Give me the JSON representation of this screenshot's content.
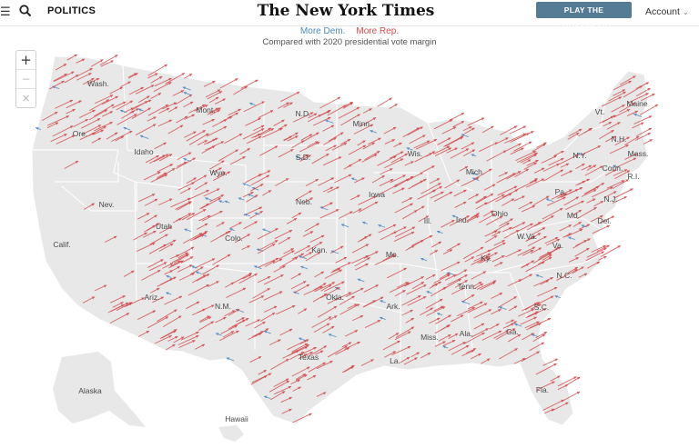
{
  "header": {
    "menu_icon": "hamburger-icon",
    "search_icon": "search-icon",
    "section": "POLITICS",
    "logo": "The New York Times",
    "cta": "PLAY THE CROSSWORD",
    "account": "Account",
    "account_icon": "chevron-down-icon"
  },
  "legend": {
    "dem": "More Dem.",
    "rep": "More Rep."
  },
  "subtitle": "Compared with 2020 presidential vote margin",
  "zoom": {
    "in": "+",
    "out": "−",
    "reset": "×"
  },
  "colors": {
    "dem": "#4b8ac2",
    "rep": "#d24c4f",
    "land": "#e8e8e8",
    "border": "#ffffff",
    "cta": "#567b95"
  },
  "states": [
    {
      "name": "Wash."
    },
    {
      "name": "Ore."
    },
    {
      "name": "Calif."
    },
    {
      "name": "Idaho"
    },
    {
      "name": "Nev."
    },
    {
      "name": "Utah"
    },
    {
      "name": "Ariz."
    },
    {
      "name": "Mont."
    },
    {
      "name": "Wyo."
    },
    {
      "name": "Colo."
    },
    {
      "name": "N.M."
    },
    {
      "name": "N.D."
    },
    {
      "name": "S.D."
    },
    {
      "name": "Neb."
    },
    {
      "name": "Kan."
    },
    {
      "name": "Okla."
    },
    {
      "name": "Texas"
    },
    {
      "name": "Minn."
    },
    {
      "name": "Iowa"
    },
    {
      "name": "Mo."
    },
    {
      "name": "Ark."
    },
    {
      "name": "La."
    },
    {
      "name": "Wis."
    },
    {
      "name": "Ill."
    },
    {
      "name": "Mich."
    },
    {
      "name": "Ind."
    },
    {
      "name": "Ohio"
    },
    {
      "name": "Ky."
    },
    {
      "name": "Tenn."
    },
    {
      "name": "Miss."
    },
    {
      "name": "Ala."
    },
    {
      "name": "Ga."
    },
    {
      "name": "Fla."
    },
    {
      "name": "S.C."
    },
    {
      "name": "N.C."
    },
    {
      "name": "Va."
    },
    {
      "name": "W.Va."
    },
    {
      "name": "Pa."
    },
    {
      "name": "N.Y."
    },
    {
      "name": "Vt."
    },
    {
      "name": "Maine"
    },
    {
      "name": "N.H."
    },
    {
      "name": "Mass."
    },
    {
      "name": "Conn."
    },
    {
      "name": "R.I."
    },
    {
      "name": "N.J."
    },
    {
      "name": "Del."
    },
    {
      "name": "Md."
    },
    {
      "name": "Alaska"
    },
    {
      "name": "Hawaii"
    }
  ]
}
